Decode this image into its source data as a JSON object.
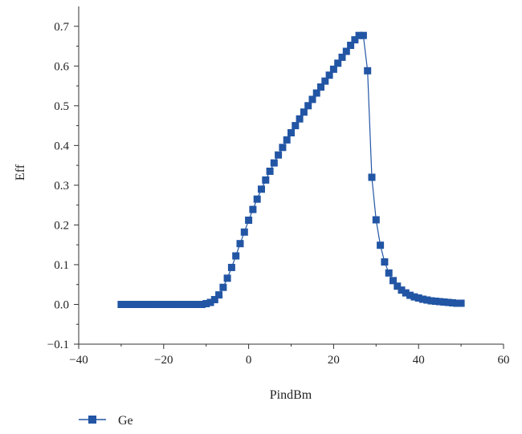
{
  "chart_data": {
    "type": "line",
    "title": "",
    "xlabel": "PindBm",
    "ylabel": "Eff",
    "xlim": [
      -40,
      60
    ],
    "ylim": [
      -0.1,
      0.75
    ],
    "xticks": [
      -40,
      -20,
      0,
      20,
      40,
      60
    ],
    "xtick_labels": [
      "−40",
      "−20",
      "0",
      "20",
      "40",
      "60"
    ],
    "yticks": [
      -0.1,
      0.0,
      0.1,
      0.2,
      0.3,
      0.4,
      0.5,
      0.6,
      0.7
    ],
    "ytick_labels": [
      "−0.1",
      "0.0",
      "0.1",
      "0.2",
      "0.3",
      "0.4",
      "0.5",
      "0.6",
      "0.7"
    ],
    "grid": false,
    "legend": "bottom-left",
    "marker": "square",
    "color": "#2255a4",
    "series": [
      {
        "name": "Ge",
        "x": [
          -30,
          -29,
          -28,
          -27,
          -26,
          -25,
          -24,
          -23,
          -22,
          -21,
          -20,
          -19,
          -18,
          -17,
          -16,
          -15,
          -14,
          -13,
          -12,
          -11,
          -10,
          -9,
          -8,
          -7,
          -6,
          -5,
          -4,
          -3,
          -2,
          -1,
          0,
          1,
          2,
          3,
          4,
          5,
          6,
          7,
          8,
          9,
          10,
          11,
          12,
          13,
          14,
          15,
          16,
          17,
          18,
          19,
          20,
          21,
          22,
          23,
          24,
          25,
          26,
          27,
          28,
          29,
          30,
          31,
          32,
          33,
          34,
          35,
          36,
          37,
          38,
          39,
          40,
          41,
          42,
          43,
          44,
          45,
          46,
          47,
          48,
          49,
          50
        ],
        "y": [
          0.0,
          0.0,
          0.0,
          0.0,
          0.0,
          0.0,
          0.0,
          0.0,
          0.0,
          0.0,
          0.0,
          0.0,
          0.0,
          0.0,
          0.0,
          0.0,
          0.0,
          0.0,
          0.0,
          0.0,
          0.002,
          0.005,
          0.012,
          0.024,
          0.043,
          0.066,
          0.093,
          0.122,
          0.153,
          0.182,
          0.212,
          0.239,
          0.265,
          0.29,
          0.313,
          0.335,
          0.356,
          0.376,
          0.395,
          0.414,
          0.432,
          0.45,
          0.467,
          0.484,
          0.5,
          0.516,
          0.532,
          0.547,
          0.562,
          0.577,
          0.592,
          0.607,
          0.622,
          0.637,
          0.652,
          0.666,
          0.677,
          0.677,
          0.588,
          0.32,
          0.213,
          0.149,
          0.107,
          0.079,
          0.06,
          0.046,
          0.036,
          0.029,
          0.023,
          0.019,
          0.016,
          0.013,
          0.011,
          0.009,
          0.008,
          0.007,
          0.006,
          0.005,
          0.004,
          0.003,
          0.003
        ]
      }
    ]
  }
}
